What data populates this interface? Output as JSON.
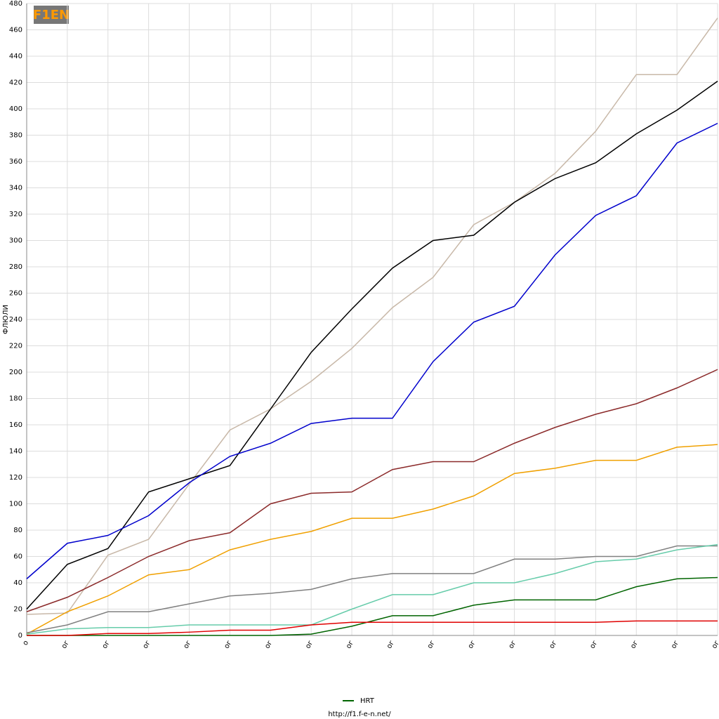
{
  "chart_data": {
    "type": "line",
    "logo": "F1EN",
    "y_label": "ФЛЮЛИ",
    "footer": "http://f1.f-e-n.net/",
    "categories": [
      "о",
      "ог",
      "ог",
      "ог",
      "ог",
      "ог",
      "ог",
      "ог",
      "ог",
      "ог",
      "ог",
      "ог",
      "ог",
      "ог",
      "ог",
      "ог",
      "ог",
      "ог"
    ],
    "ylim": [
      0,
      480
    ],
    "yticks": [
      0,
      20,
      40,
      60,
      80,
      100,
      120,
      140,
      160,
      180,
      200,
      220,
      240,
      260,
      280,
      300,
      320,
      340,
      360,
      380,
      400,
      420,
      440,
      460,
      480
    ],
    "grid": true,
    "legend": "bottom",
    "series": [
      {
        "color": "#c8b8a8",
        "values": [
          16,
          17,
          61,
          73,
          115,
          156,
          172,
          193,
          218,
          249,
          272,
          312,
          329,
          351,
          383,
          426,
          426,
          469
        ]
      },
      {
        "color": "#000000",
        "values": [
          20,
          54,
          66,
          109,
          119,
          129,
          172,
          215,
          248,
          279,
          300,
          304,
          329,
          347,
          359,
          381,
          399,
          421
        ]
      },
      {
        "color": "#0000cc",
        "values": [
          43,
          70,
          76,
          91,
          116,
          136,
          146,
          161,
          165,
          165,
          208,
          238,
          250,
          289,
          319,
          334,
          374,
          389
        ]
      },
      {
        "color": "#8b2a2a",
        "values": [
          18,
          29,
          44,
          60,
          72,
          78,
          100,
          108,
          109,
          126,
          132,
          132,
          146,
          158,
          168,
          176,
          188,
          202
        ]
      },
      {
        "color": "#f0a000",
        "values": [
          1,
          18,
          30,
          46,
          50,
          65,
          73,
          79,
          89,
          89,
          96,
          106,
          123,
          127,
          133,
          133,
          143,
          145
        ]
      },
      {
        "color": "#808080",
        "values": [
          2,
          8,
          18,
          18,
          24,
          30,
          32,
          35,
          43,
          47,
          47,
          47,
          58,
          58,
          60,
          60,
          68,
          68
        ]
      },
      {
        "color": "#66ccaa",
        "values": [
          1,
          5,
          6,
          6,
          8,
          8,
          8,
          8,
          20,
          31,
          31,
          40,
          40,
          47,
          56,
          58,
          65,
          69
        ]
      },
      {
        "name": "HRT",
        "color": "#006400",
        "values": [
          0,
          0,
          0,
          0,
          0,
          0,
          0,
          1,
          7,
          15,
          15,
          23,
          27,
          27,
          27,
          37,
          43,
          44
        ]
      },
      {
        "color": "#e00000",
        "values": [
          0,
          0,
          1.5,
          1.5,
          2.5,
          4,
          4,
          8,
          10,
          10,
          10,
          10,
          10,
          10,
          10,
          11,
          11,
          11
        ]
      }
    ]
  }
}
